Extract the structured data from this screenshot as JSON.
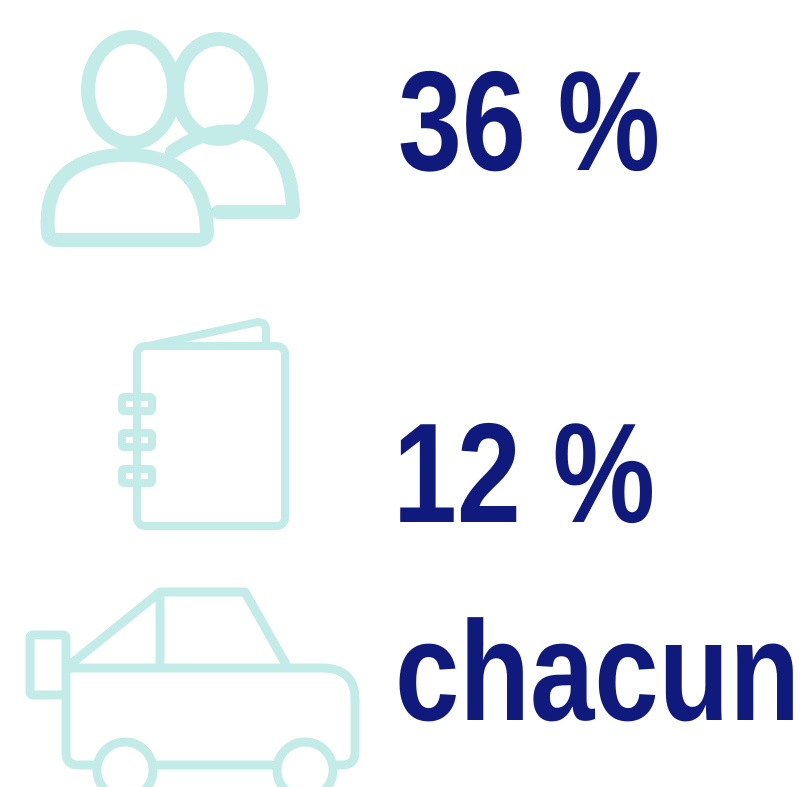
{
  "items": [
    {
      "text": "36 %"
    },
    {
      "text": "12 %"
    },
    {
      "text": "chacun"
    }
  ]
}
